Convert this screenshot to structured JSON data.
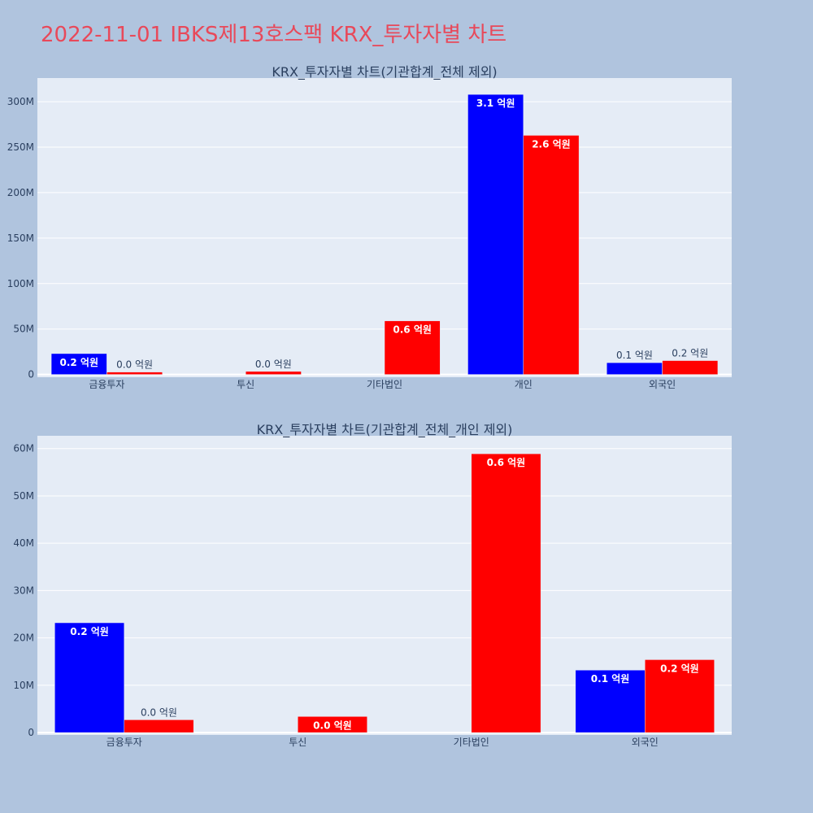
{
  "page": {
    "title": "2022-11-01 IBKS제13호스팩 KRX_투자자별 차트"
  },
  "colors": {
    "buy": "#0000ff",
    "sell": "#ff0000",
    "plot_bg": "#e5ecf6",
    "page_bg": "#b0c4de",
    "title": "#e8495a"
  },
  "chart_data": [
    {
      "type": "bar",
      "title": "KRX_투자자별 차트(기관합계_전체 제외)",
      "categories": [
        "금융투자",
        "투신",
        "기타법인",
        "개인",
        "외국인"
      ],
      "series": [
        {
          "color": "#0000ff",
          "values": [
            23000000,
            0,
            0,
            308000000,
            13000000
          ],
          "labels": [
            "0.2 억원",
            "",
            "",
            "3.1 억원",
            "0.1 억원"
          ]
        },
        {
          "color": "#ff0000",
          "values": [
            2700000,
            3400000,
            59000000,
            263000000,
            15300000
          ],
          "labels": [
            "0.0 억원",
            "0.0 억원",
            "0.6 억원",
            "2.6 억원",
            "0.2 억원"
          ]
        }
      ],
      "yticks": [
        0,
        50000000,
        100000000,
        150000000,
        200000000,
        250000000,
        300000000
      ],
      "ytick_labels": [
        "0",
        "50M",
        "100M",
        "150M",
        "200M",
        "250M",
        "300M"
      ],
      "ylim": [
        -3000000,
        326000000
      ],
      "grid": true
    },
    {
      "type": "bar",
      "title": "KRX_투자자별 차트(기관합계_전체_개인 제외)",
      "categories": [
        "금융투자",
        "투신",
        "기타법인",
        "외국인"
      ],
      "series": [
        {
          "color": "#0000ff",
          "values": [
            23200000,
            0,
            0,
            13200000
          ],
          "labels": [
            "0.2 억원",
            "",
            "",
            "0.1 억원"
          ]
        },
        {
          "color": "#ff0000",
          "values": [
            2700000,
            3400000,
            58900000,
            15400000
          ],
          "labels": [
            "0.0 억원",
            "0.0 억원",
            "0.6 억원",
            "0.2 억원"
          ]
        }
      ],
      "yticks": [
        0,
        10000000,
        20000000,
        30000000,
        40000000,
        50000000,
        60000000
      ],
      "ytick_labels": [
        "0",
        "10M",
        "20M",
        "30M",
        "40M",
        "50M",
        "60M"
      ],
      "ylim": [
        -500000,
        62700000
      ],
      "grid": true
    }
  ]
}
